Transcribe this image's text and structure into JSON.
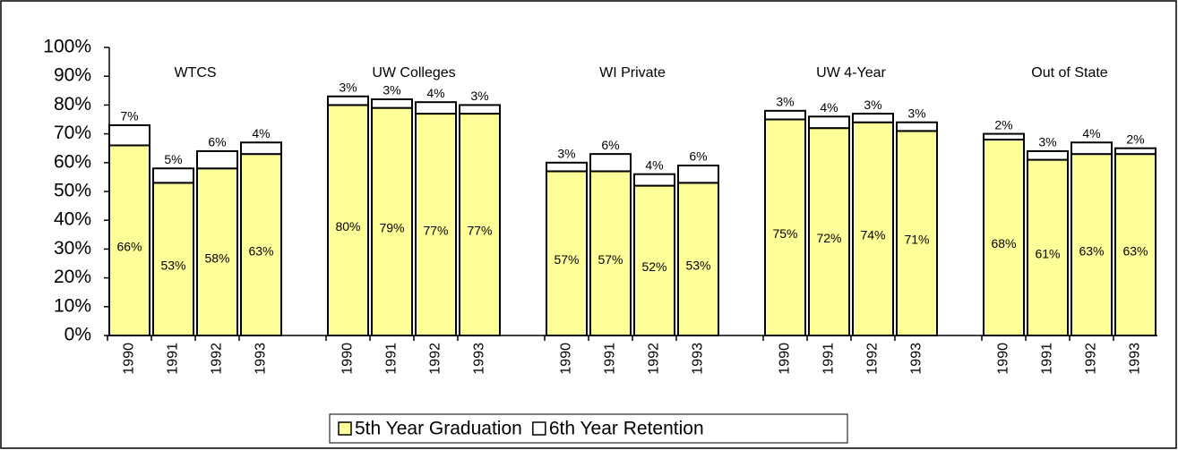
{
  "chart_data": {
    "type": "stacked_bar",
    "groups": [
      "WTCS",
      "UW Colleges",
      "WI Private",
      "UW 4-Year",
      "Out of State"
    ],
    "categories": [
      "1990",
      "1991",
      "1992",
      "1993",
      "1990",
      "1991",
      "1992",
      "1993",
      "1990",
      "1991",
      "1992",
      "1993",
      "1990",
      "1991",
      "1992",
      "1993",
      "1990",
      "1991",
      "1992",
      "1993"
    ],
    "series": [
      {
        "name": "5th Year Graduation",
        "color": "#ffff99",
        "values": [
          66,
          53,
          58,
          63,
          80,
          79,
          77,
          77,
          57,
          57,
          52,
          53,
          75,
          72,
          74,
          71,
          68,
          61,
          63,
          63
        ],
        "value_labels": [
          "66%",
          "53%",
          "58%",
          "63%",
          "80%",
          "79%",
          "77%",
          "77%",
          "57%",
          "57%",
          "52%",
          "53%",
          "75%",
          "72%",
          "74%",
          "71%",
          "68%",
          "61%",
          "63%",
          "63%"
        ]
      },
      {
        "name": "6th Year Retention",
        "color": "#ffffff",
        "values": [
          7,
          5,
          6,
          4,
          3,
          3,
          4,
          3,
          3,
          6,
          4,
          6,
          3,
          4,
          3,
          3,
          2,
          3,
          4,
          2
        ],
        "value_labels": [
          "7%",
          "5%",
          "6%",
          "4%",
          "3%",
          "3%",
          "4%",
          "3%",
          "3%",
          "6%",
          "4%",
          "6%",
          "3%",
          "4%",
          "3%",
          "3%",
          "2%",
          "3%",
          "4%",
          "2%"
        ]
      }
    ],
    "ylim": [
      0,
      100
    ],
    "yticks": [
      {
        "value": 0,
        "label": "0%"
      },
      {
        "value": 10,
        "label": "10%"
      },
      {
        "value": 20,
        "label": "20%"
      },
      {
        "value": 30,
        "label": "30%"
      },
      {
        "value": 40,
        "label": "40%"
      },
      {
        "value": 50,
        "label": "50%"
      },
      {
        "value": 60,
        "label": "60%"
      },
      {
        "value": 70,
        "label": "70%"
      },
      {
        "value": 80,
        "label": "80%"
      },
      {
        "value": 90,
        "label": "90%"
      },
      {
        "value": 100,
        "label": "100%"
      }
    ],
    "legend": "bottom"
  }
}
